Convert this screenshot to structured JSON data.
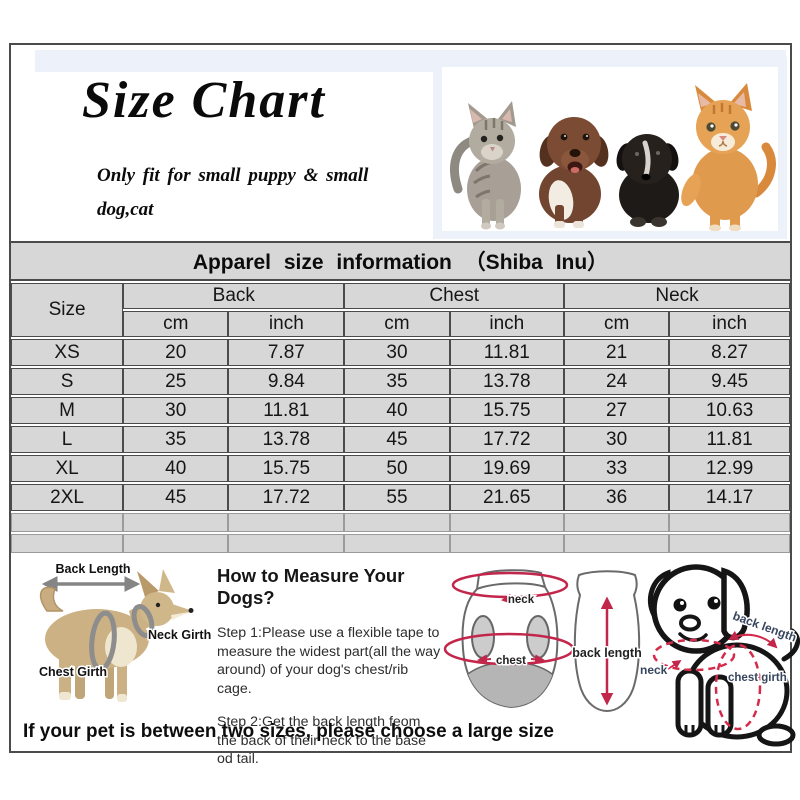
{
  "header": {
    "title": "Size Chart",
    "subtitle_line1": "Only fit for  small puppy & small",
    "subtitle_line2": "dog,cat"
  },
  "info_bar": {
    "text": "Apparel size information （Shiba Inu）"
  },
  "table": {
    "size_label": "Size",
    "groups": [
      {
        "label": "Back"
      },
      {
        "label": "Chest"
      },
      {
        "label": "Neck"
      }
    ],
    "sub_headers": [
      "cm",
      "inch"
    ],
    "rows": [
      {
        "size": "XS",
        "back_cm": "20",
        "back_inch": "7.87",
        "chest_cm": "30",
        "chest_inch": "11.81",
        "neck_cm": "21",
        "neck_inch": "8.27"
      },
      {
        "size": "S",
        "back_cm": "25",
        "back_inch": "9.84",
        "chest_cm": "35",
        "chest_inch": "13.78",
        "neck_cm": "24",
        "neck_inch": "9.45"
      },
      {
        "size": "M",
        "back_cm": "30",
        "back_inch": "11.81",
        "chest_cm": "40",
        "chest_inch": "15.75",
        "neck_cm": "27",
        "neck_inch": "10.63"
      },
      {
        "size": "L",
        "back_cm": "35",
        "back_inch": "13.78",
        "chest_cm": "45",
        "chest_inch": "17.72",
        "neck_cm": "30",
        "neck_inch": "11.81"
      },
      {
        "size": "XL",
        "back_cm": "40",
        "back_inch": "15.75",
        "chest_cm": "50",
        "chest_inch": "19.69",
        "neck_cm": "33",
        "neck_inch": "12.99"
      },
      {
        "size": "2XL",
        "back_cm": "45",
        "back_inch": "17.72",
        "chest_cm": "55",
        "chest_inch": "21.65",
        "neck_cm": "36",
        "neck_inch": "14.17"
      }
    ],
    "empty_row_count": 2
  },
  "chart_data": {
    "type": "table",
    "title": "Apparel size information （Shiba Inu）",
    "columns": [
      "Size",
      "Back cm",
      "Back inch",
      "Chest cm",
      "Chest inch",
      "Neck cm",
      "Neck inch"
    ],
    "rows": [
      [
        "XS",
        20,
        7.87,
        30,
        11.81,
        21,
        8.27
      ],
      [
        "S",
        25,
        9.84,
        35,
        13.78,
        24,
        9.45
      ],
      [
        "M",
        30,
        11.81,
        40,
        15.75,
        27,
        10.63
      ],
      [
        "L",
        35,
        13.78,
        45,
        17.72,
        30,
        11.81
      ],
      [
        "XL",
        40,
        15.75,
        50,
        19.69,
        33,
        12.99
      ],
      [
        "2XL",
        45,
        17.72,
        55,
        21.65,
        36,
        14.17
      ]
    ]
  },
  "measure": {
    "heading": "How to Measure Your Dogs?",
    "step1": "Step 1:Please use a flexible tape to measure the widest part(all the way around) of your dog's chest/rib cage.",
    "step2": "Step 2:Get the back length feom the back of their neck to the base od tail."
  },
  "dog_diagram": {
    "back_length": "Back Length",
    "neck_girth": "Neck Girth",
    "chest_girth": "Chest Girth"
  },
  "garment_diagram": {
    "neck": "neck",
    "chest": "chest",
    "back_length": "back length"
  },
  "puppy_diagram": {
    "neck": "neck",
    "back_length": "back length",
    "chest_girth": "chest girth"
  },
  "footer_note": {
    "text": "If your pet is between two sizes, please choose a large size"
  },
  "colors": {
    "table_cell": "#d7d7d7",
    "table_border": "#4b4b4b",
    "accent_red": "#c2264a",
    "label_blue": "#38465f",
    "tint_blue": "#edf1f9",
    "dog_tan": "#cbb183",
    "strap_gray": "#8d8d8d"
  }
}
